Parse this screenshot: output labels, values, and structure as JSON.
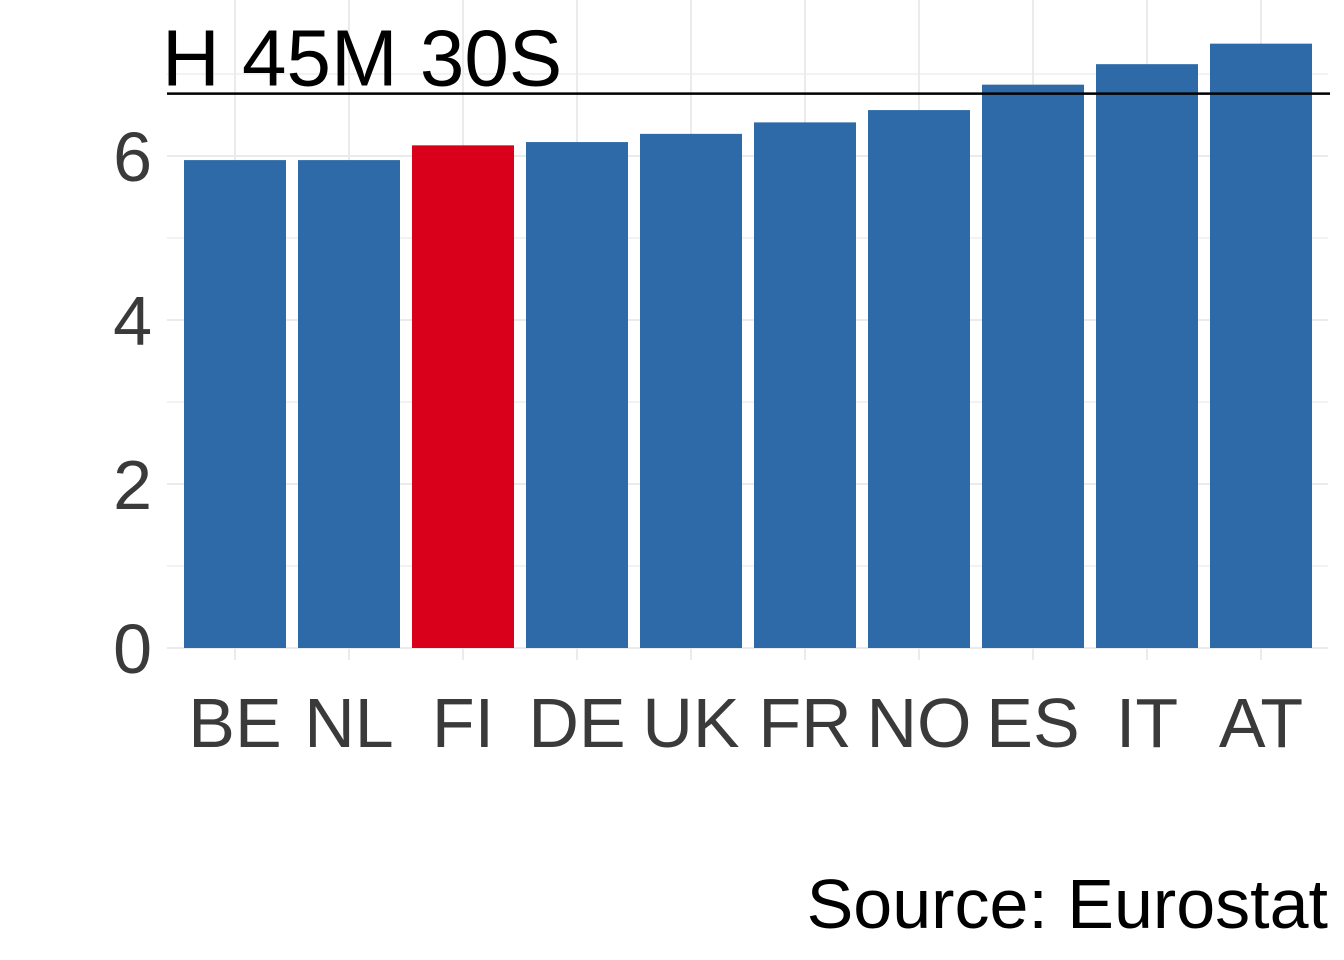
{
  "chart_data": {
    "type": "bar",
    "categories": [
      "BE",
      "NL",
      "FI",
      "DE",
      "UK",
      "FR",
      "NO",
      "ES",
      "IT",
      "AT"
    ],
    "values": [
      5.95,
      5.95,
      6.13,
      6.17,
      6.27,
      6.41,
      6.56,
      6.87,
      7.12,
      7.37
    ],
    "highlight_category": "FI",
    "ylim": [
      0,
      7.5
    ],
    "yticks": [
      0,
      2,
      4,
      6
    ],
    "reference_line": {
      "value": 6.76,
      "label": "H 45M 30S"
    },
    "caption": "Source: Eurostat",
    "grid": true,
    "colors": {
      "bar": "#2e6aa8",
      "highlight": "#d9001b",
      "grid": "#ebebeb",
      "reference_line": "#000000"
    }
  }
}
